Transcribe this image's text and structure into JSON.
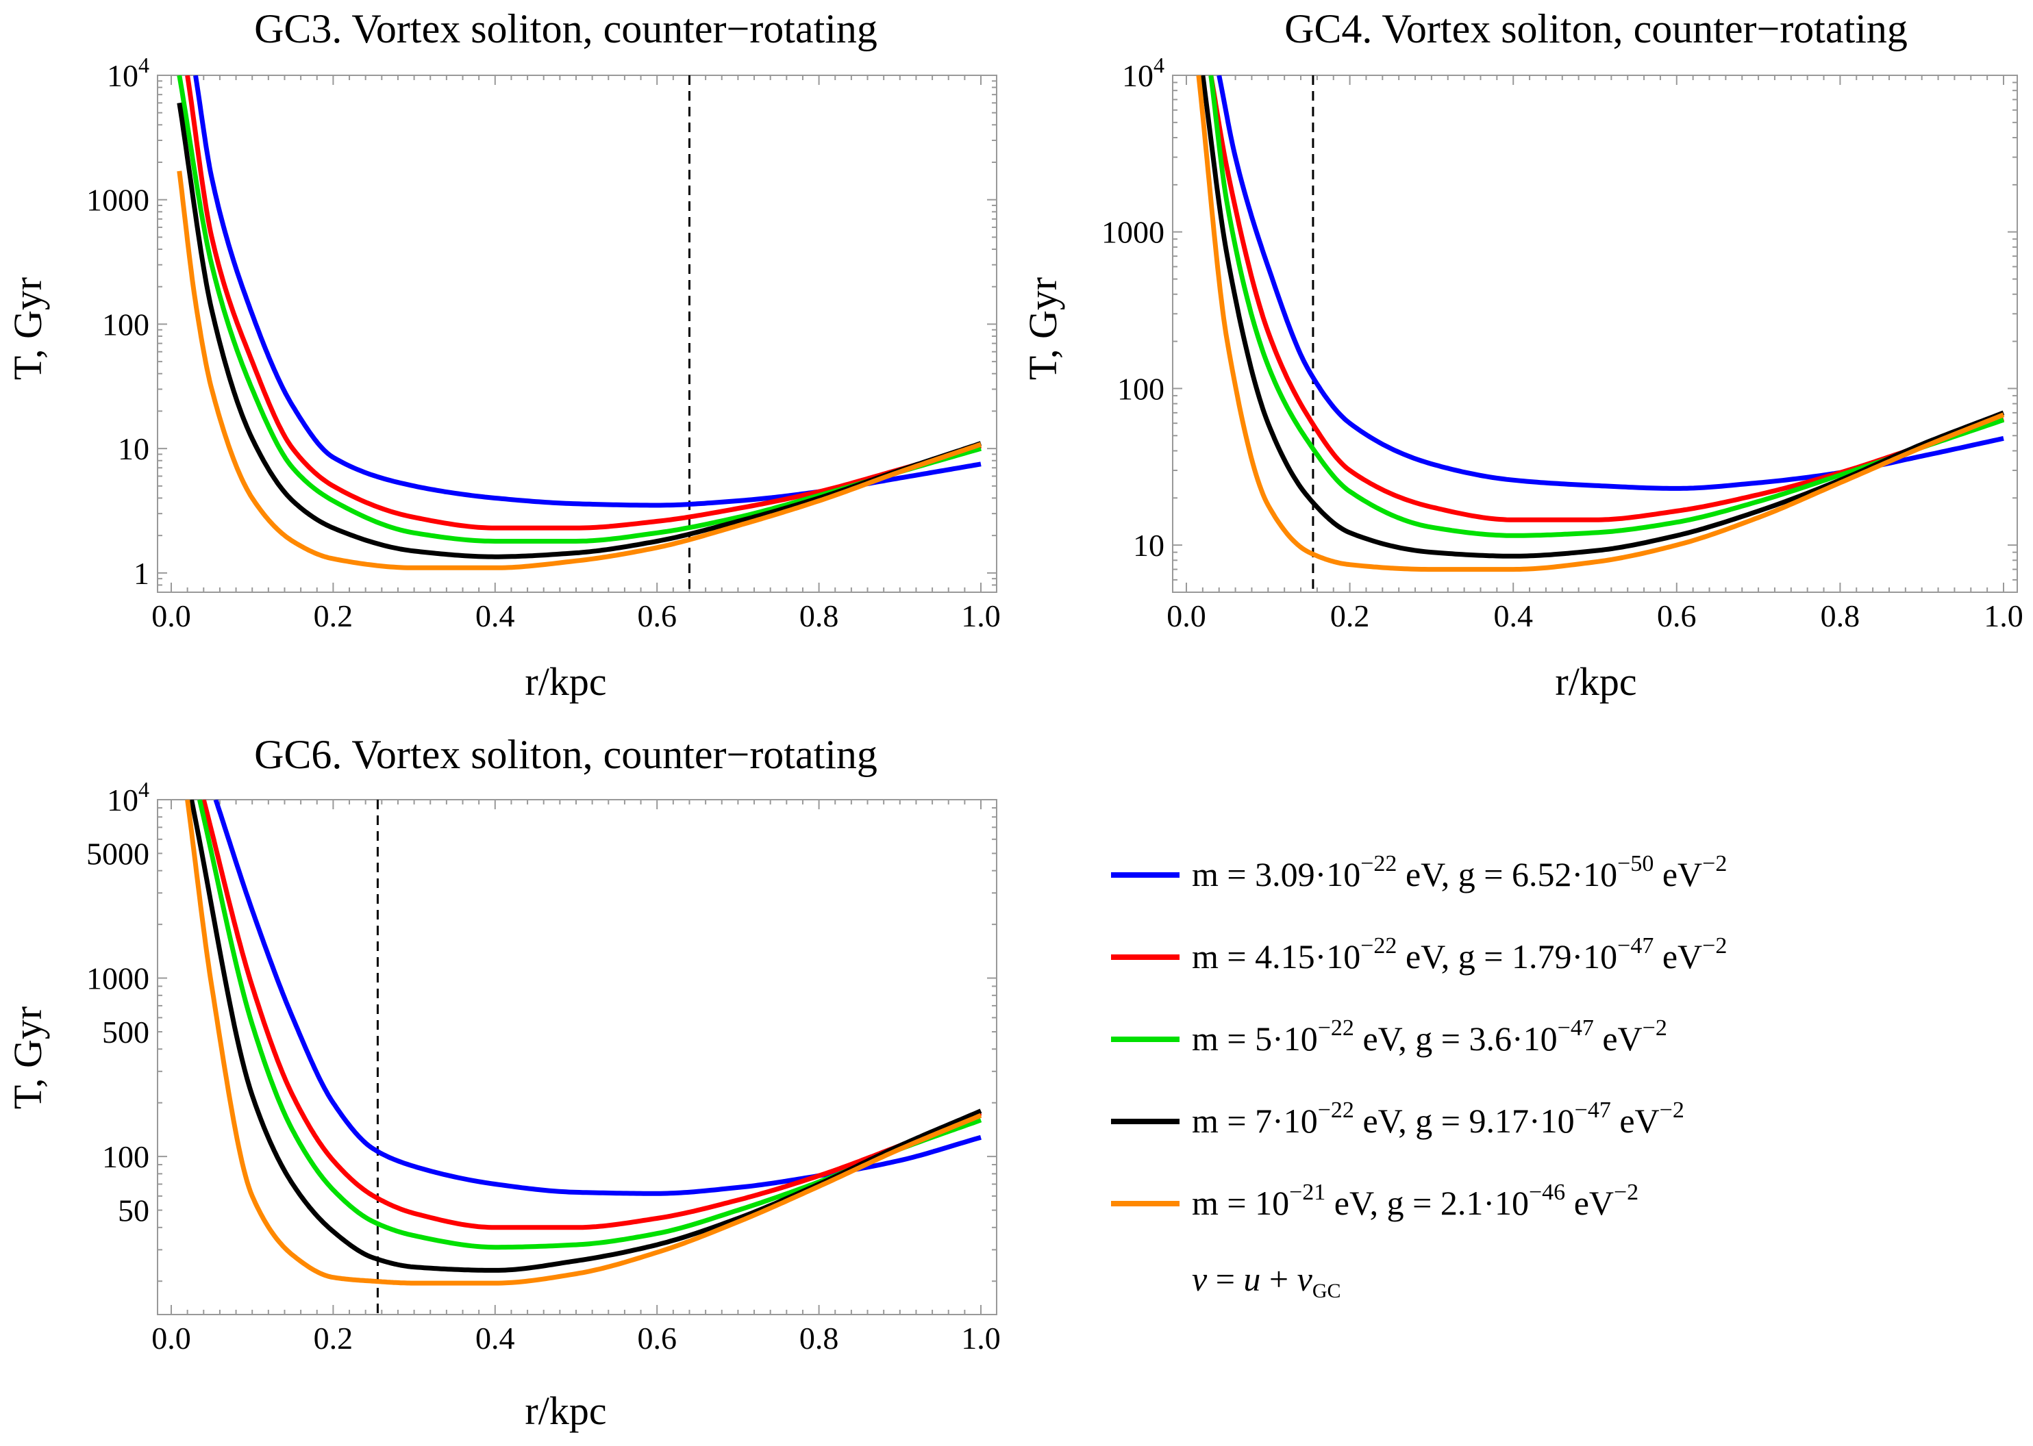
{
  "chart_data": [
    {
      "type": "line",
      "id": "gc3",
      "title": "GC3. Vortex soliton, counter−rotating",
      "xlabel": "r/kpc",
      "ylabel": "T, Gyr",
      "yscale": "log",
      "xlim": [
        0.0,
        1.0
      ],
      "ylim": [
        0.7,
        10000
      ],
      "xticks": [
        0.0,
        0.2,
        0.4,
        0.6,
        0.8,
        1.0
      ],
      "xtick_labels": [
        "0.0",
        "0.2",
        "0.4",
        "0.6",
        "0.8",
        "1.0"
      ],
      "yticks": [
        1,
        10,
        100,
        1000,
        10000
      ],
      "ytick_labels": [
        "1",
        "10",
        "100",
        "1000",
        "10^4"
      ],
      "vline_x": 0.64,
      "series": [
        {
          "name": "m3.09",
          "x": [
            0.03,
            0.05,
            0.1,
            0.15,
            0.2,
            0.3,
            0.4,
            0.5,
            0.6,
            0.7,
            0.8,
            0.9,
            1.0
          ],
          "y": [
            10000,
            1500,
            120,
            22,
            8.5,
            5.0,
            4.0,
            3.6,
            3.5,
            3.8,
            4.5,
            5.8,
            7.5
          ]
        },
        {
          "name": "m4.15",
          "x": [
            0.02,
            0.05,
            0.1,
            0.15,
            0.2,
            0.3,
            0.4,
            0.5,
            0.6,
            0.7,
            0.8,
            0.9,
            1.0
          ],
          "y": [
            10000,
            500,
            50,
            10,
            5.0,
            2.8,
            2.3,
            2.3,
            2.6,
            3.3,
            4.5,
            6.8,
            10.5
          ]
        },
        {
          "name": "m5",
          "x": [
            0.01,
            0.05,
            0.1,
            0.15,
            0.2,
            0.3,
            0.4,
            0.5,
            0.6,
            0.7,
            0.8,
            0.9,
            1.0
          ],
          "y": [
            10000,
            300,
            30,
            7.0,
            3.8,
            2.1,
            1.8,
            1.8,
            2.1,
            2.8,
            4.2,
            6.5,
            10.0
          ]
        },
        {
          "name": "m7",
          "x": [
            0.01,
            0.05,
            0.1,
            0.15,
            0.2,
            0.3,
            0.4,
            0.5,
            0.6,
            0.7,
            0.8,
            0.9,
            1.0
          ],
          "y": [
            6000,
            130,
            12,
            3.8,
            2.3,
            1.5,
            1.35,
            1.45,
            1.8,
            2.6,
            4.0,
            6.7,
            11.0
          ]
        },
        {
          "name": "m10",
          "x": [
            0.01,
            0.03,
            0.05,
            0.1,
            0.15,
            0.2,
            0.3,
            0.4,
            0.5,
            0.6,
            0.7,
            0.8,
            0.9,
            1.0
          ],
          "y": [
            1700,
            150,
            30,
            4.0,
            1.8,
            1.3,
            1.1,
            1.1,
            1.25,
            1.6,
            2.4,
            3.8,
            6.5,
            10.8
          ]
        }
      ]
    },
    {
      "type": "line",
      "id": "gc4",
      "title": "GC4. Vortex soliton, counter−rotating",
      "xlabel": "r/kpc",
      "ylabel": "T, Gyr",
      "yscale": "log",
      "xlim": [
        0.0,
        1.0
      ],
      "ylim": [
        5,
        10000
      ],
      "xticks": [
        0.0,
        0.2,
        0.4,
        0.6,
        0.8,
        1.0
      ],
      "xtick_labels": [
        "0.0",
        "0.2",
        "0.4",
        "0.6",
        "0.8",
        "1.0"
      ],
      "yticks": [
        10,
        100,
        1000,
        10000
      ],
      "ytick_labels": [
        "10",
        "100",
        "1000",
        "10^4"
      ],
      "vline_x": 0.155,
      "series": [
        {
          "name": "m3.09",
          "x": [
            0.04,
            0.06,
            0.1,
            0.15,
            0.2,
            0.3,
            0.4,
            0.5,
            0.6,
            0.7,
            0.8,
            0.9,
            1.0
          ],
          "y": [
            10000,
            3000,
            600,
            130,
            60,
            33,
            26,
            24,
            23,
            25,
            29,
            37,
            48
          ]
        },
        {
          "name": "m4.15",
          "x": [
            0.03,
            0.05,
            0.1,
            0.15,
            0.2,
            0.3,
            0.4,
            0.5,
            0.6,
            0.7,
            0.8,
            0.9,
            1.0
          ],
          "y": [
            10000,
            2500,
            230,
            65,
            30,
            17.5,
            14.5,
            14.5,
            16.5,
            21,
            29,
            43,
            64
          ]
        },
        {
          "name": "m5",
          "x": [
            0.03,
            0.05,
            0.1,
            0.15,
            0.2,
            0.3,
            0.4,
            0.5,
            0.6,
            0.7,
            0.8,
            0.9,
            1.0
          ],
          "y": [
            10000,
            1500,
            140,
            45,
            22,
            13,
            11.5,
            12,
            14,
            19,
            28,
            42,
            63
          ]
        },
        {
          "name": "m7",
          "x": [
            0.02,
            0.05,
            0.1,
            0.15,
            0.2,
            0.3,
            0.4,
            0.5,
            0.6,
            0.7,
            0.8,
            0.9,
            1.0
          ],
          "y": [
            10000,
            700,
            60,
            20,
            12,
            9.0,
            8.5,
            9.2,
            11.5,
            16.5,
            26,
            44,
            70
          ]
        },
        {
          "name": "m10",
          "x": [
            0.015,
            0.05,
            0.1,
            0.15,
            0.2,
            0.3,
            0.4,
            0.5,
            0.6,
            0.7,
            0.8,
            0.9,
            1.0
          ],
          "y": [
            10000,
            200,
            18,
            9.0,
            7.5,
            7.0,
            7.0,
            7.8,
            10,
            15,
            25,
            42,
            68
          ]
        }
      ]
    },
    {
      "type": "line",
      "id": "gc6",
      "title": "GC6. Vortex soliton, counter−rotating",
      "xlabel": "r/kpc",
      "ylabel": "T, Gyr",
      "yscale": "log",
      "xlim": [
        0.0,
        1.0
      ],
      "ylim": [
        13,
        10000
      ],
      "xticks": [
        0.0,
        0.2,
        0.4,
        0.6,
        0.8,
        1.0
      ],
      "xtick_labels": [
        "0.0",
        "0.2",
        "0.4",
        "0.6",
        "0.8",
        "1.0"
      ],
      "yticks": [
        50,
        100,
        500,
        1000,
        5000,
        10000
      ],
      "ytick_labels": [
        "50",
        "100",
        "500",
        "1000",
        "5000",
        "10^4"
      ],
      "vline_x": 0.255,
      "series": [
        {
          "name": "m3.09",
          "x": [
            0.055,
            0.1,
            0.15,
            0.2,
            0.25,
            0.3,
            0.4,
            0.5,
            0.6,
            0.7,
            0.8,
            0.9,
            1.0
          ],
          "y": [
            10000,
            2400,
            600,
            200,
            110,
            88,
            70,
            63,
            62,
            67,
            78,
            95,
            128
          ]
        },
        {
          "name": "m4.15",
          "x": [
            0.04,
            0.1,
            0.15,
            0.2,
            0.25,
            0.3,
            0.4,
            0.5,
            0.6,
            0.7,
            0.8,
            0.9,
            1.0
          ],
          "y": [
            10000,
            900,
            220,
            95,
            60,
            48,
            40,
            40,
            45,
            57,
            78,
            115,
            175
          ]
        },
        {
          "name": "m5",
          "x": [
            0.035,
            0.1,
            0.15,
            0.2,
            0.25,
            0.3,
            0.4,
            0.5,
            0.6,
            0.7,
            0.8,
            0.9,
            1.0
          ],
          "y": [
            10000,
            550,
            140,
            65,
            43,
            36,
            31,
            32,
            37,
            50,
            72,
            110,
            160
          ]
        },
        {
          "name": "m7",
          "x": [
            0.025,
            0.1,
            0.15,
            0.2,
            0.25,
            0.3,
            0.4,
            0.5,
            0.6,
            0.7,
            0.8,
            0.9,
            1.0
          ],
          "y": [
            10000,
            220,
            70,
            38,
            27,
            24,
            23,
            26,
            32,
            45,
            70,
            115,
            180
          ]
        },
        {
          "name": "m10",
          "x": [
            0.02,
            0.05,
            0.1,
            0.15,
            0.2,
            0.25,
            0.3,
            0.4,
            0.5,
            0.6,
            0.7,
            0.8,
            0.9,
            1.0
          ],
          "y": [
            10000,
            900,
            60,
            28,
            21,
            20,
            19.5,
            19.5,
            22,
            29,
            43,
            68,
            110,
            170
          ]
        }
      ]
    }
  ],
  "series_styles": [
    {
      "name": "m3.09",
      "color": "#0000ff"
    },
    {
      "name": "m4.15",
      "color": "#ff0000"
    },
    {
      "name": "m5",
      "color": "#00e000"
    },
    {
      "name": "m7",
      "color": "#000000"
    },
    {
      "name": "m10",
      "color": "#ff8800"
    }
  ],
  "legend": {
    "position": "lower-right",
    "entries": [
      {
        "color": "#0000ff",
        "pre": "m = 3.09·10",
        "sup1": "−22",
        "mid": " eV, g = 6.52·10",
        "sup2": "−50",
        "post": " eV",
        "sup3": "−2"
      },
      {
        "color": "#ff0000",
        "pre": "m = 4.15·10",
        "sup1": "−22",
        "mid": " eV, g = 1.79·10",
        "sup2": "−47",
        "post": " eV",
        "sup3": "−2"
      },
      {
        "color": "#00e000",
        "pre": "m = 5·10",
        "sup1": "−22",
        "mid": " eV, g = 3.6·10",
        "sup2": "−47",
        "post": " eV",
        "sup3": "−2"
      },
      {
        "color": "#000000",
        "pre": "m = 7·10",
        "sup1": "−22",
        "mid": " eV, g = 9.17·10",
        "sup2": "−47",
        "post": " eV",
        "sup3": "−2"
      },
      {
        "color": "#ff8800",
        "pre": "m = 10",
        "sup1": "−21",
        "mid": " eV, g = 2.1·10",
        "sup2": "−46",
        "post": " eV",
        "sup3": "−2"
      }
    ],
    "note_v": "v",
    "note_eq": " = ",
    "note_u": "u",
    "note_plus": " + ",
    "note_vgc": "v",
    "note_sub": "GC"
  }
}
